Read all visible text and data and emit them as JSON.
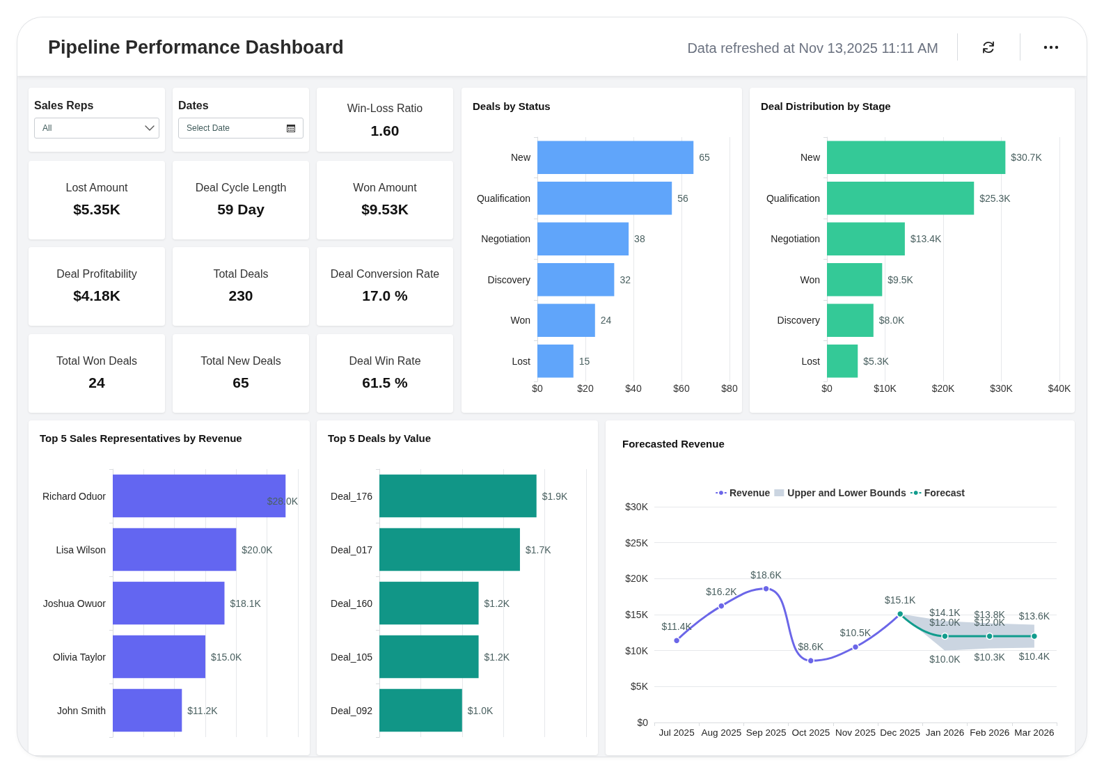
{
  "chart_data": [
    {
      "type": "other",
      "title": "Pipeline Performance Dashboard",
      "subtitle": "Data refreshed at Nov 13,2025 11:11 AM"
    },
    {
      "type": "other",
      "title": "Sales Reps",
      "annotations": [
        "All"
      ]
    },
    {
      "type": "other",
      "title": "Dates",
      "annotations": [
        "Select Date"
      ]
    },
    {
      "type": "other",
      "title": "Win-Loss Ratio",
      "annotations": [
        "1.60"
      ]
    },
    {
      "type": "other",
      "title": "Lost Amount",
      "annotations": [
        "$5.35K"
      ]
    },
    {
      "type": "other",
      "title": "Deal Cycle Length",
      "annotations": [
        "59 Day"
      ]
    },
    {
      "type": "other",
      "title": "Won Amount",
      "annotations": [
        "$9.53K"
      ]
    },
    {
      "type": "other",
      "title": "Deal Profitability",
      "annotations": [
        "$4.18K"
      ]
    },
    {
      "type": "other",
      "title": "Total Deals",
      "annotations": [
        "230"
      ]
    },
    {
      "type": "other",
      "title": "Deal Conversion Rate",
      "annotations": [
        "17.0 %"
      ]
    },
    {
      "type": "other",
      "title": "Total Won Deals",
      "annotations": [
        "24"
      ]
    },
    {
      "type": "other",
      "title": "Total New Deals",
      "annotations": [
        "65"
      ]
    },
    {
      "type": "other",
      "title": "Deal Win Rate",
      "annotations": [
        "61.5 %"
      ]
    },
    {
      "type": "bar",
      "title": "Deals by Status",
      "orientation": "horizontal",
      "categories": [
        "New",
        "Qualification",
        "Negotiation",
        "Discovery",
        "Won",
        "Lost"
      ],
      "values": [
        65,
        56,
        38,
        32,
        24,
        15
      ],
      "color": "#60a5fa",
      "xlim": [
        0,
        80
      ],
      "xticks": [
        {
          "value": 0,
          "label": "$0"
        },
        {
          "value": 20,
          "label": "$20"
        },
        {
          "value": 40,
          "label": "$40"
        },
        {
          "value": 60,
          "label": "$60"
        },
        {
          "value": 80,
          "label": "$80"
        }
      ],
      "grid": "x",
      "data_labels": true
    },
    {
      "type": "bar",
      "title": "Deal Distribution by Stage",
      "orientation": "horizontal",
      "categories": [
        "New",
        "Qualification",
        "Negotiation",
        "Won",
        "Discovery",
        "Lost"
      ],
      "values": [
        30700,
        25300,
        13400,
        9500,
        8000,
        5300
      ],
      "value_labels": [
        "$30.7K",
        "$25.3K",
        "$13.4K",
        "$9.5K",
        "$8.0K",
        "$5.3K"
      ],
      "color": "#34c997",
      "xlim": [
        0,
        40000
      ],
      "xticks": [
        {
          "value": 0,
          "label": "$0"
        },
        {
          "value": 10000,
          "label": "$10K"
        },
        {
          "value": 20000,
          "label": "$20K"
        },
        {
          "value": 30000,
          "label": "$30K"
        },
        {
          "value": 40000,
          "label": "$40K"
        }
      ],
      "grid": "x"
    },
    {
      "type": "bar",
      "title": "Top 5 Sales Representatives by Revenue",
      "orientation": "horizontal",
      "categories": [
        "Richard Oduor",
        "Lisa Wilson",
        "Joshua Owuor",
        "Olivia Taylor",
        "John Smith"
      ],
      "values": [
        28000,
        20000,
        18100,
        15000,
        11200
      ],
      "value_labels": [
        "$28.0K",
        "$20.0K",
        "$18.1K",
        "$15.0K",
        "$11.2K"
      ],
      "color": "#6366f1",
      "xlim": [
        0,
        30000
      ],
      "xticks": [
        {
          "value": 0,
          "label": null
        },
        {
          "value": 5000,
          "label": null
        },
        {
          "value": 10000,
          "label": null
        },
        {
          "value": 15000,
          "label": null
        },
        {
          "value": 20000,
          "label": null
        },
        {
          "value": 25000,
          "label": null
        },
        {
          "value": 30000,
          "label": null
        }
      ],
      "grid": "x",
      "tick_labels": "y"
    },
    {
      "type": "bar",
      "title": "Top 5 Deals by Value",
      "orientation": "horizontal",
      "categories": [
        "Deal_176",
        "Deal_017",
        "Deal_160",
        "Deal_105",
        "Deal_092"
      ],
      "values": [
        1900,
        1700,
        1200,
        1200,
        1000
      ],
      "value_labels": [
        "$1.9K",
        "$1.7K",
        "$1.2K",
        "$1.2K",
        "$1.0K"
      ],
      "color": "#119687",
      "xlim": [
        0,
        2500
      ],
      "xticks": [
        {
          "value": 0,
          "label": null
        },
        {
          "value": 500,
          "label": null
        },
        {
          "value": 1000,
          "label": null
        },
        {
          "value": 1500,
          "label": null
        },
        {
          "value": 2000,
          "label": null
        },
        {
          "value": 2500,
          "label": null
        }
      ],
      "grid": "x",
      "tick_labels": "y"
    },
    {
      "type": "line",
      "title": "Forecasted Revenue",
      "categories": [
        "Jul 2025",
        "Aug 2025",
        "Sep 2025",
        "Oct 2025",
        "Nov 2025",
        "Dec 2025",
        "Jan 2026",
        "Feb 2026",
        "Mar 2026"
      ],
      "series": [
        {
          "name": "Revenue",
          "color": "#6b66e8",
          "values": [
            11400,
            16200,
            18600,
            8600,
            10500,
            15100,
            null,
            null,
            null
          ],
          "value_labels": [
            "$11.4K",
            "$16.2K",
            "$18.6K",
            "$8.6K",
            "$10.5K",
            "$15.1K",
            null,
            null,
            null
          ]
        },
        {
          "name": "Upper and Lower Bounds",
          "type": "area",
          "color": "#cbd5e1",
          "values": [
            null,
            null,
            null,
            null,
            null,
            null,
            null,
            null,
            null
          ],
          "lower": [
            null,
            null,
            null,
            null,
            null,
            15100,
            10000,
            10300,
            10400
          ],
          "upper": [
            null,
            null,
            null,
            null,
            null,
            15100,
            14100,
            13800,
            13600
          ]
        },
        {
          "name": "Forecast",
          "color": "#119c8d",
          "values": [
            null,
            null,
            null,
            null,
            null,
            15100,
            12000,
            12000,
            12000
          ],
          "value_labels": [
            null,
            null,
            null,
            null,
            null,
            null,
            "$12.0K",
            "$12.0K",
            null
          ]
        }
      ],
      "ylim": [
        0,
        30000
      ],
      "yticks": [
        {
          "value": 0,
          "label": "$0"
        },
        {
          "value": 5000,
          "label": "$5K"
        },
        {
          "value": 10000,
          "label": "$10K"
        },
        {
          "value": 15000,
          "label": "$15K"
        },
        {
          "value": 20000,
          "label": "$20K"
        },
        {
          "value": 25000,
          "label": "$25K"
        },
        {
          "value": 30000,
          "label": "$30K"
        }
      ],
      "grid": "y",
      "legend": "top",
      "marker": "circle",
      "annotations": [
        {
          "text": "$14.1K",
          "x": "Jan 2026",
          "y": 14100
        },
        {
          "text": "$13.8K",
          "x": "Feb 2026",
          "y": 13800
        },
        {
          "text": "$13.6K",
          "x": "Mar 2026",
          "y": 13600
        },
        {
          "text": "$10.0K",
          "x": "Jan 2026",
          "y": 10000
        },
        {
          "text": "$10.3K",
          "x": "Feb 2026",
          "y": 10300
        },
        {
          "text": "$10.4K",
          "x": "Mar 2026",
          "y": 10400
        }
      ]
    }
  ]
}
